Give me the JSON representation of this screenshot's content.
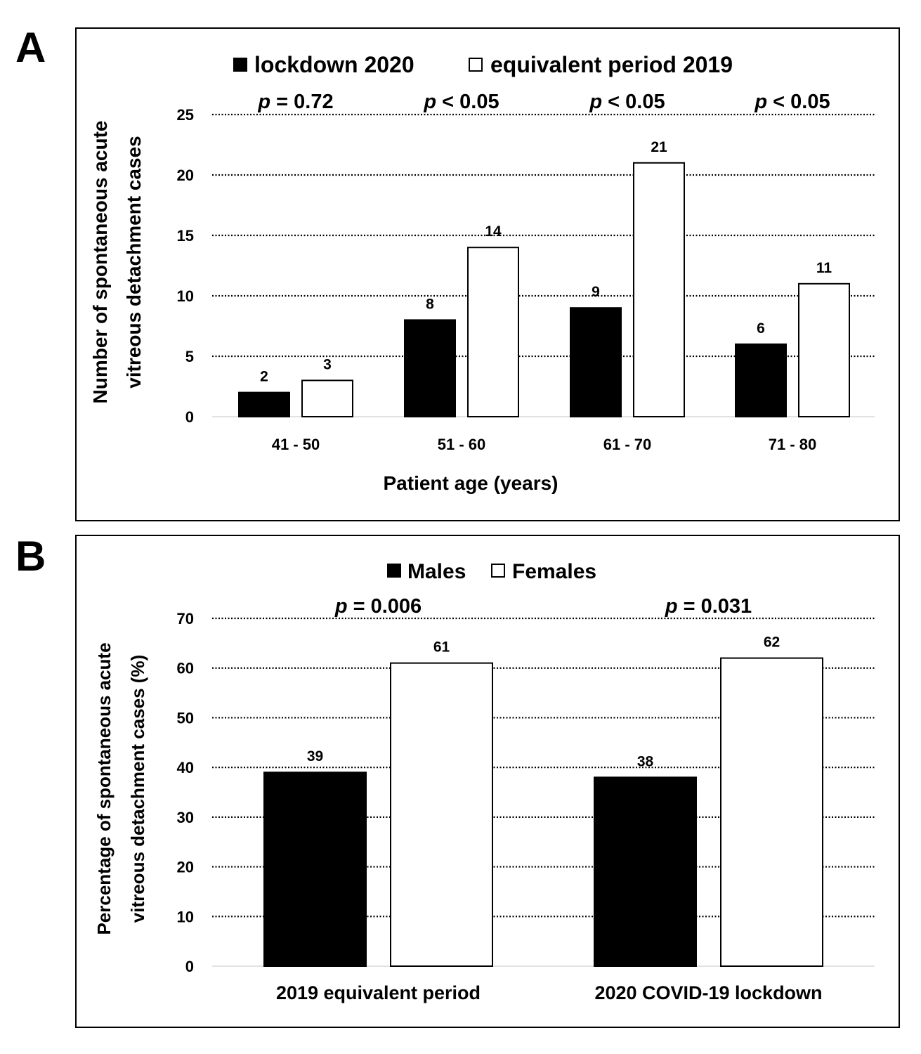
{
  "panels": [
    {
      "letter": "A",
      "chart_data": {
        "type": "bar",
        "categories": [
          "41 - 50",
          "51 - 60",
          "61 - 70",
          "71 - 80"
        ],
        "series": [
          {
            "name": "lockdown 2020",
            "values": [
              2,
              8,
              9,
              6
            ],
            "color": "#000000"
          },
          {
            "name": "equivalent period 2019",
            "values": [
              3,
              14,
              21,
              11
            ],
            "color": "#ffffff"
          }
        ],
        "data_labels": [
          [
            "2",
            "8",
            "9",
            "6"
          ],
          [
            "3",
            "14",
            "21",
            "11"
          ]
        ],
        "p_values": [
          {
            "prefix": "p",
            "rest": " = 0.72"
          },
          {
            "prefix": "p",
            "rest": " < 0.05"
          },
          {
            "prefix": "p",
            "rest": " < 0.05"
          },
          {
            "prefix": "p",
            "rest": " < 0.05"
          }
        ],
        "xlabel": "Patient age (years)",
        "ylabel_lines": [
          "Number of spontaneous acute",
          "vitreous detachment cases"
        ],
        "yticks": [
          "0",
          "5",
          "10",
          "15",
          "20",
          "25"
        ],
        "ylim": [
          0,
          25
        ],
        "grid": "dotted horizontal",
        "legend": "top-center"
      }
    },
    {
      "letter": "B",
      "chart_data": {
        "type": "bar",
        "categories": [
          "2019 equivalent period",
          "2020 COVID-19 lockdown"
        ],
        "series": [
          {
            "name": "Males",
            "values": [
              39,
              38
            ],
            "color": "#000000"
          },
          {
            "name": "Females",
            "values": [
              61,
              62
            ],
            "color": "#ffffff"
          }
        ],
        "data_labels": [
          [
            "39",
            "38"
          ],
          [
            "61",
            "62"
          ]
        ],
        "p_values": [
          {
            "prefix": "p",
            "rest": " = 0.006"
          },
          {
            "prefix": "p",
            "rest": " = 0.031"
          }
        ],
        "xlabel": "",
        "ylabel_lines": [
          "Percentage of spontaneous acute",
          "vitreous detachment cases (%)"
        ],
        "yticks": [
          "0",
          "10",
          "20",
          "30",
          "40",
          "50",
          "60",
          "70"
        ],
        "ylim": [
          0,
          70
        ],
        "grid": "dotted horizontal",
        "legend": "top-center"
      }
    }
  ]
}
